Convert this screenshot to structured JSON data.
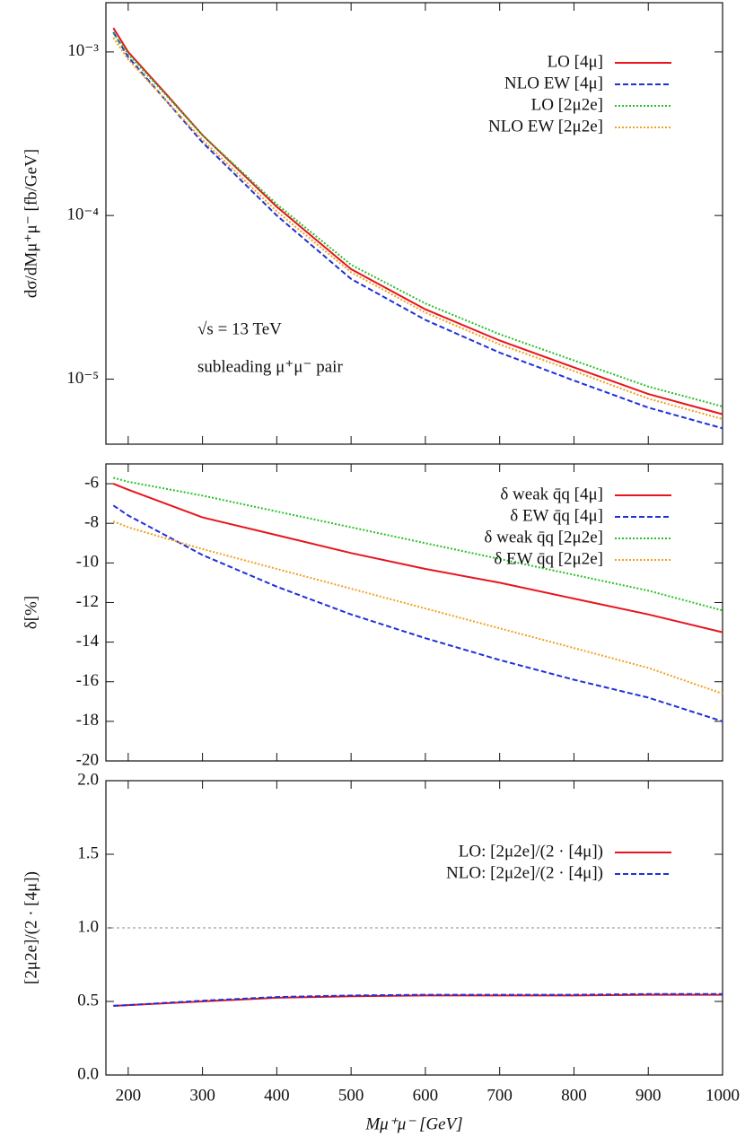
{
  "chart_data": [
    {
      "type": "line",
      "yscale": "log",
      "ylabel": "dσ/dMμ⁺μ⁻ [fb/GeV]",
      "annotations": [
        "√s = 13 TeV",
        "subleading μ⁺μ⁻ pair"
      ],
      "legend": "top right",
      "xlim": [
        170,
        1000
      ],
      "ylim": [
        4e-06,
        0.002
      ],
      "yticks": [
        {
          "value": 0.001,
          "label": "10⁻³"
        },
        {
          "value": 0.0001,
          "label": "10⁻⁴"
        },
        {
          "value": 1e-05,
          "label": "10⁻⁵"
        }
      ],
      "x": [
        180,
        200,
        250,
        300,
        400,
        500,
        600,
        700,
        800,
        900,
        1000
      ],
      "series": [
        {
          "name": "LO  [4μ]",
          "color": "#e8141c",
          "style": "solid",
          "values": [
            0.0014,
            0.001,
            0.00056,
            0.00031,
            0.000113,
            4.7e-05,
            2.67e-05,
            1.72e-05,
            1.18e-05,
            8.1e-06,
            6.1e-06
          ]
        },
        {
          "name": "NLO EW  [4μ]",
          "color": "#2030d8",
          "style": "dashed",
          "values": [
            0.00132,
            0.00093,
            0.00051,
            0.00028,
            0.0001,
            4.1e-05,
            2.3e-05,
            1.45e-05,
            9.8e-06,
            6.7e-06,
            5e-06
          ]
        },
        {
          "name": "LO  [2μ2e]",
          "color": "#28c028",
          "style": "dotted",
          "values": [
            0.0013,
            0.00097,
            0.00055,
            0.00031,
            0.000117,
            5e-05,
            2.9e-05,
            1.88e-05,
            1.3e-05,
            9e-06,
            6.8e-06
          ]
        },
        {
          "name": "NLO EW  [2μ2e]",
          "color": "#f0a020",
          "style": "dotted",
          "values": [
            0.00122,
            0.0009,
            0.00051,
            0.00029,
            0.000106,
            4.5e-05,
            2.55e-05,
            1.63e-05,
            1.12e-05,
            7.6e-06,
            5.7e-06
          ]
        }
      ]
    },
    {
      "type": "line",
      "ylabel": "δ[%]",
      "legend": "top right",
      "xlim": [
        170,
        1000
      ],
      "ylim": [
        -20,
        -5
      ],
      "yticks": [
        -20,
        -18,
        -16,
        -14,
        -12,
        -10,
        -8,
        -6
      ],
      "x": [
        180,
        200,
        300,
        400,
        500,
        600,
        700,
        800,
        900,
        1000
      ],
      "series": [
        {
          "name": "δ weak q̄q [4μ]",
          "color": "#e8141c",
          "style": "solid",
          "values": [
            -6,
            -6.3,
            -7.7,
            -8.6,
            -9.5,
            -10.3,
            -11,
            -11.8,
            -12.6,
            -13.5
          ]
        },
        {
          "name": "δ EW q̄q [4μ]",
          "color": "#2030d8",
          "style": "dashed",
          "values": [
            -7.1,
            -7.6,
            -9.6,
            -11.2,
            -12.6,
            -13.8,
            -14.9,
            -15.9,
            -16.8,
            -18
          ]
        },
        {
          "name": "δ weak q̄q [2μ2e]",
          "color": "#28c028",
          "style": "dotted",
          "values": [
            -5.7,
            -5.9,
            -6.6,
            -7.4,
            -8.2,
            -9,
            -9.8,
            -10.6,
            -11.4,
            -12.4
          ]
        },
        {
          "name": "δ EW q̄q [2μ2e]",
          "color": "#f0a020",
          "style": "dotted",
          "values": [
            -7.9,
            -8.2,
            -9.3,
            -10.3,
            -11.3,
            -12.3,
            -13.3,
            -14.3,
            -15.3,
            -16.6
          ]
        }
      ]
    },
    {
      "type": "line",
      "ylabel": "[2μ2e]/(2 · [4μ])",
      "xlabel": "Mμ⁺μ⁻ [GeV]",
      "legend": "top right",
      "xlim": [
        170,
        1000
      ],
      "xticks": [
        200,
        300,
        400,
        500,
        600,
        700,
        800,
        900,
        1000
      ],
      "ylim": [
        0,
        2
      ],
      "yticks": [
        {
          "value": 0,
          "label": "0.0"
        },
        0.5,
        {
          "value": 1,
          "label": "1.0"
        },
        1.5,
        {
          "value": 2,
          "label": "2.0"
        }
      ],
      "hline": 1,
      "x": [
        180,
        200,
        300,
        400,
        500,
        600,
        700,
        800,
        900,
        1000
      ],
      "series": [
        {
          "name": "LO: [2μ2e]/(2 · [4μ])",
          "color": "#e8141c",
          "style": "solid",
          "values": [
            0.47,
            0.475,
            0.5,
            0.525,
            0.535,
            0.54,
            0.54,
            0.54,
            0.545,
            0.545
          ]
        },
        {
          "name": "NLO: [2μ2e]/(2 · [4μ])",
          "color": "#2030d8",
          "style": "dashed",
          "values": [
            0.47,
            0.475,
            0.505,
            0.53,
            0.54,
            0.545,
            0.545,
            0.545,
            0.55,
            0.55
          ]
        }
      ]
    }
  ]
}
